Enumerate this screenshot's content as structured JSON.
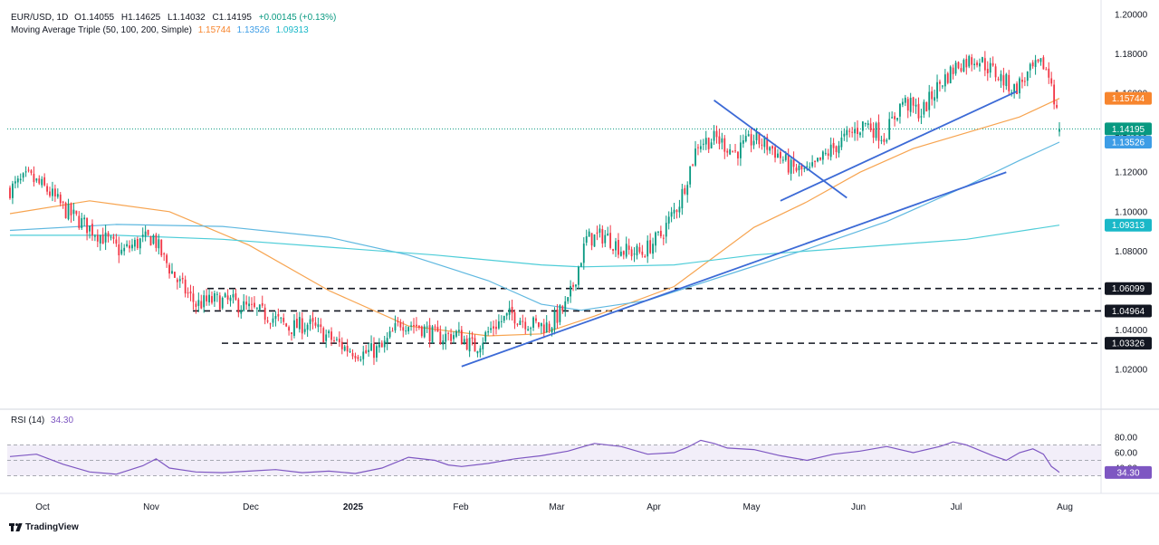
{
  "header": {
    "symbol": "EUR/USD, 1D",
    "ohlc": [
      {
        "label": "O",
        "value": "1.14055"
      },
      {
        "label": "H",
        "value": "1.14625"
      },
      {
        "label": "L",
        "value": "1.14032"
      },
      {
        "label": "C",
        "value": "1.14195"
      }
    ],
    "change": "+0.00145 (+0.13%)",
    "ma_title": "Moving Average Triple (50, 100, 200, Simple)",
    "ma_values": [
      "1.15744",
      "1.13526",
      "1.09313"
    ]
  },
  "rsi_title": "RSI (14)",
  "rsi_value": "34.30",
  "footer": "TradingView",
  "colors": {
    "up": "#089981",
    "down": "#f23645",
    "ma50": "#f7a450",
    "ma100": "#5fb8e0",
    "ma200": "#4ecdd8",
    "trend": "#3c6ad6",
    "rsi": "#7e57c2",
    "rsi_band": "#ede7f6",
    "price_tag": "#089981",
    "ma50_tag": "#f7852e",
    "ma100_tag": "#3d9de6",
    "ma200_tag": "#1ab8c8",
    "level_tag": "#131722"
  },
  "chart_data": [
    {
      "type": "candlestick",
      "title": "EUR/USD, 1D",
      "x_tick_labels": [
        "Oct",
        "Nov",
        "Dec",
        "2025",
        "Feb",
        "Mar",
        "Apr",
        "May",
        "Jun",
        "Jul",
        "Aug"
      ],
      "y_tick_labels": [
        "1.20000",
        "1.18000",
        "1.16000",
        "1.14000",
        "1.12000",
        "1.10000",
        "1.08000",
        "1.06000",
        "1.04000",
        "1.02000"
      ],
      "ylim": [
        1.005,
        1.2
      ],
      "price_path": [
        [
          0,
          1.1113
        ],
        [
          7,
          1.1175
        ],
        [
          14,
          1.111
        ],
        [
          21,
          1.1005
        ],
        [
          28,
          1.0935
        ],
        [
          35,
          1.087
        ],
        [
          42,
          1.0795
        ],
        [
          49,
          1.085
        ],
        [
          54,
          1.087
        ],
        [
          58,
          1.076
        ],
        [
          63,
          1.065
        ],
        [
          70,
          1.053
        ],
        [
          77,
          1.055
        ],
        [
          84,
          1.054
        ],
        [
          91,
          1.05
        ],
        [
          98,
          1.047
        ],
        [
          105,
          1.041
        ],
        [
          112,
          1.043
        ],
        [
          119,
          1.037
        ],
        [
          126,
          1.031
        ],
        [
          133,
          1.028
        ],
        [
          140,
          1.0305
        ],
        [
          147,
          1.044
        ],
        [
          154,
          1.042
        ],
        [
          161,
          1.036
        ],
        [
          168,
          1.038
        ],
        [
          175,
          1.031
        ],
        [
          182,
          1.042
        ],
        [
          189,
          1.048
        ],
        [
          196,
          1.043
        ],
        [
          203,
          1.042
        ],
        [
          210,
          1.0535
        ],
        [
          217,
          1.086
        ],
        [
          224,
          1.088
        ],
        [
          231,
          1.08
        ],
        [
          238,
          1.079
        ],
        [
          245,
          1.088
        ],
        [
          252,
          1.105
        ],
        [
          259,
          1.135
        ],
        [
          266,
          1.137
        ],
        [
          273,
          1.13
        ],
        [
          280,
          1.137
        ],
        [
          287,
          1.132
        ],
        [
          294,
          1.122
        ],
        [
          301,
          1.12
        ],
        [
          308,
          1.13
        ],
        [
          315,
          1.138
        ],
        [
          322,
          1.145
        ],
        [
          329,
          1.138
        ],
        [
          336,
          1.156
        ],
        [
          343,
          1.15
        ],
        [
          350,
          1.165
        ],
        [
          357,
          1.175
        ],
        [
          364,
          1.178
        ],
        [
          371,
          1.17
        ],
        [
          378,
          1.162
        ],
        [
          385,
          1.172
        ],
        [
          389,
          1.1745
        ],
        [
          392,
          1.166
        ],
        [
          394,
          1.1502
        ],
        [
          395,
          1.1419
        ]
      ],
      "last_price": 1.14195,
      "series": [
        {
          "name": "50",
          "current": 1.15744,
          "path": [
            [
              0,
              1.099
            ],
            [
              30,
              1.1055
            ],
            [
              60,
              1.1
            ],
            [
              90,
              1.083
            ],
            [
              120,
              1.06
            ],
            [
              150,
              1.042
            ],
            [
              180,
              1.037
            ],
            [
              200,
              1.038
            ],
            [
              220,
              1.047
            ],
            [
              250,
              1.062
            ],
            [
              280,
              1.092
            ],
            [
              300,
              1.105
            ],
            [
              320,
              1.12
            ],
            [
              340,
              1.132
            ],
            [
              360,
              1.14
            ],
            [
              380,
              1.148
            ],
            [
              395,
              1.15744
            ]
          ]
        },
        {
          "name": "100",
          "current": 1.13526,
          "path": [
            [
              0,
              1.0905
            ],
            [
              40,
              1.0935
            ],
            [
              80,
              1.0925
            ],
            [
              120,
              1.087
            ],
            [
              150,
              1.078
            ],
            [
              180,
              1.065
            ],
            [
              200,
              1.053
            ],
            [
              215,
              1.05
            ],
            [
              240,
              1.055
            ],
            [
              270,
              1.068
            ],
            [
              300,
              1.081
            ],
            [
              330,
              1.095
            ],
            [
              360,
              1.113
            ],
            [
              380,
              1.126
            ],
            [
              395,
              1.13526
            ]
          ]
        },
        {
          "name": "200",
          "current": 1.09313,
          "path": [
            [
              0,
              1.088
            ],
            [
              40,
              1.088
            ],
            [
              80,
              1.086
            ],
            [
              120,
              1.082
            ],
            [
              160,
              1.078
            ],
            [
              200,
              1.073
            ],
            [
              215,
              1.072
            ],
            [
              250,
              1.073
            ],
            [
              280,
              1.078
            ],
            [
              320,
              1.082
            ],
            [
              360,
              1.086
            ],
            [
              395,
              1.09313
            ]
          ]
        }
      ],
      "trendlines": [
        {
          "from": [
            170,
            1.0215
          ],
          "to": [
            375,
            1.12
          ]
        },
        {
          "from": [
            290,
            1.1055
          ],
          "to": [
            379,
            1.161
          ]
        },
        {
          "from": [
            265,
            1.1565
          ],
          "to": [
            315,
            1.107
          ]
        }
      ],
      "levels": [
        1.06099,
        1.04964,
        1.03326
      ],
      "level_tag_labels": [
        "1.06099",
        "1.04964",
        "1.03326"
      ],
      "price_tag_labels": [
        "1.15744",
        "1.14195",
        "1.13526",
        "1.09313"
      ]
    },
    {
      "type": "line",
      "title": "RSI (14)",
      "y_tick_labels": [
        "80.00",
        "60.00",
        "40.00"
      ],
      "ylim": [
        25,
        85
      ],
      "band": [
        30,
        70
      ],
      "mid": 50,
      "current": 34.3,
      "path": [
        [
          0,
          55
        ],
        [
          10,
          58
        ],
        [
          20,
          45
        ],
        [
          30,
          35
        ],
        [
          40,
          32
        ],
        [
          50,
          43
        ],
        [
          55,
          52
        ],
        [
          60,
          40
        ],
        [
          70,
          35
        ],
        [
          80,
          34
        ],
        [
          90,
          36
        ],
        [
          100,
          38
        ],
        [
          110,
          34
        ],
        [
          120,
          36
        ],
        [
          130,
          33
        ],
        [
          140,
          40
        ],
        [
          150,
          54
        ],
        [
          160,
          50
        ],
        [
          165,
          44
        ],
        [
          170,
          42
        ],
        [
          180,
          46
        ],
        [
          190,
          52
        ],
        [
          200,
          56
        ],
        [
          210,
          62
        ],
        [
          220,
          72
        ],
        [
          230,
          68
        ],
        [
          240,
          58
        ],
        [
          250,
          60
        ],
        [
          255,
          67
        ],
        [
          260,
          76
        ],
        [
          265,
          72
        ],
        [
          270,
          66
        ],
        [
          280,
          64
        ],
        [
          290,
          56
        ],
        [
          300,
          50
        ],
        [
          310,
          58
        ],
        [
          320,
          62
        ],
        [
          330,
          68
        ],
        [
          340,
          60
        ],
        [
          350,
          68
        ],
        [
          355,
          74
        ],
        [
          360,
          70
        ],
        [
          370,
          56
        ],
        [
          375,
          50
        ],
        [
          380,
          60
        ],
        [
          385,
          65
        ],
        [
          389,
          58
        ],
        [
          392,
          42
        ],
        [
          394,
          37
        ],
        [
          395,
          34.3
        ]
      ]
    }
  ]
}
